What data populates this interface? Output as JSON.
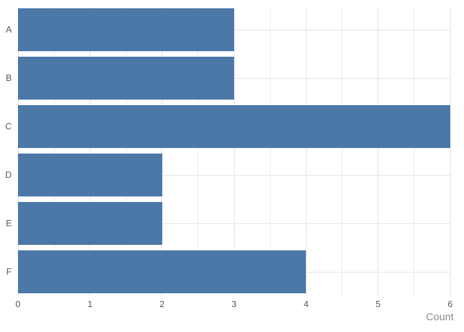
{
  "chart_data": {
    "type": "bar",
    "orientation": "horizontal",
    "title": "",
    "xlabel": "Count",
    "ylabel": "",
    "categories": [
      "A",
      "B",
      "C",
      "D",
      "E",
      "F"
    ],
    "values": [
      3,
      3,
      6,
      2,
      2,
      4
    ],
    "xlim": [
      0,
      6
    ],
    "x_major_ticks": [
      "0",
      "1",
      "2",
      "3",
      "4",
      "5",
      "6"
    ],
    "x_minor_step": 0.5,
    "grid": "on",
    "legend": "none",
    "colors": {
      "bar_fill": "#4C78A8",
      "major_grid": "#e3e3e3",
      "minor_grid": "#ebebeb",
      "tick_label": "#5a5a5a",
      "axis_title": "#8c8c8c",
      "background": "#ffffff"
    }
  }
}
